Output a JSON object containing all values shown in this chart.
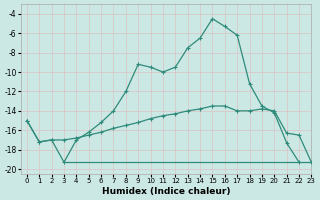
{
  "xlabel": "Humidex (Indice chaleur)",
  "xlim": [
    -0.5,
    23
  ],
  "ylim": [
    -20.5,
    -3
  ],
  "yticks": [
    -20,
    -18,
    -16,
    -14,
    -12,
    -10,
    -8,
    -6,
    -4
  ],
  "xticks": [
    0,
    1,
    2,
    3,
    4,
    5,
    6,
    7,
    8,
    9,
    10,
    11,
    12,
    13,
    14,
    15,
    16,
    17,
    18,
    19,
    20,
    21,
    22,
    23
  ],
  "bg_color": "#cce8e5",
  "grid_color": "#b8d8d5",
  "line_color": "#2e8b7a",
  "line1_x": [
    0,
    1,
    2,
    3,
    4,
    5,
    6,
    7,
    8,
    9,
    10,
    11,
    12,
    13,
    14,
    15,
    16,
    17,
    18,
    19,
    20,
    21,
    22
  ],
  "line1_y": [
    -15.0,
    -17.2,
    -17.0,
    -19.3,
    -17.0,
    -16.2,
    -15.2,
    -14.0,
    -12.0,
    -9.2,
    -9.5,
    -10.0,
    -9.5,
    -7.5,
    -6.5,
    -4.5,
    -5.3,
    -6.2,
    -11.2,
    -13.5,
    -14.2,
    -17.3,
    -19.3
  ],
  "line2_x": [
    0,
    1,
    2,
    3,
    4,
    5,
    6,
    7,
    8,
    9,
    10,
    11,
    12,
    13,
    14,
    15,
    16,
    17,
    18,
    19,
    20,
    21,
    22,
    23
  ],
  "line2_y": [
    -15.0,
    -17.2,
    -17.0,
    -17.0,
    -16.8,
    -16.5,
    -16.2,
    -15.8,
    -15.5,
    -15.2,
    -14.8,
    -14.5,
    -14.3,
    -14.0,
    -13.8,
    -13.5,
    -13.5,
    -14.0,
    -14.0,
    -13.8,
    -14.0,
    -16.3,
    -16.5,
    -19.3
  ],
  "line3_x": [
    3,
    4,
    5,
    6,
    7,
    8,
    9,
    10,
    11,
    12,
    13,
    14,
    15,
    16,
    17,
    18,
    19,
    20,
    21,
    22,
    23
  ],
  "line3_y": [
    -19.3,
    -19.3,
    -19.3,
    -19.3,
    -19.3,
    -19.3,
    -19.3,
    -19.3,
    -19.3,
    -19.3,
    -19.3,
    -19.3,
    -19.3,
    -19.3,
    -19.3,
    -19.3,
    -19.3,
    -19.3,
    -19.3,
    -19.3,
    -19.3
  ]
}
